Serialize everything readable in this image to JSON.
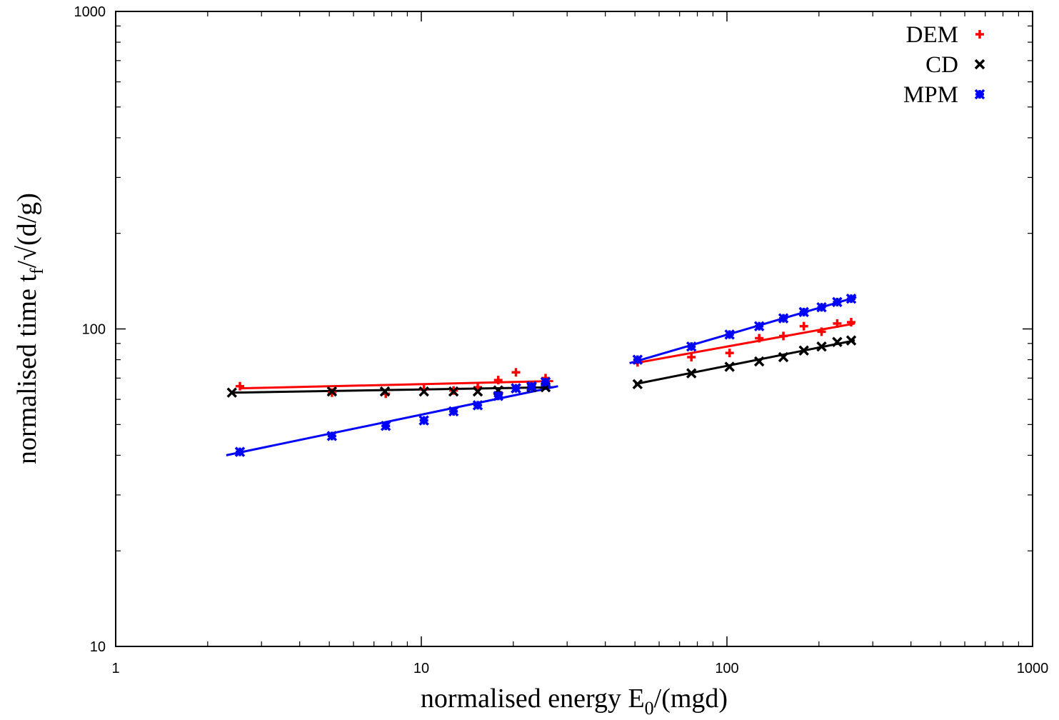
{
  "chart_data": {
    "type": "scatter",
    "xlabel_main": "normalised energy E",
    "xlabel_sub": "0",
    "xlabel_tail": "/(mgd)",
    "ylabel_main": "normalised time t",
    "ylabel_sub": "f",
    "ylabel_tail": "/√(d/g)",
    "x_scale": "log",
    "y_scale": "log",
    "xlim": [
      1,
      1000
    ],
    "ylim": [
      10,
      1000
    ],
    "x_ticks": [
      1,
      10,
      100,
      1000
    ],
    "x_tick_labels": [
      "1",
      "10",
      "100",
      "1000"
    ],
    "y_ticks": [
      10,
      100,
      1000
    ],
    "y_tick_labels": [
      "10",
      "100",
      "1000"
    ],
    "grid": false,
    "legend_position": "top-right",
    "series": [
      {
        "name": "DEM",
        "color": "#ff0000",
        "marker": "plus",
        "points": [
          [
            2.55,
            66.0
          ],
          [
            5.1,
            63.0
          ],
          [
            7.65,
            62.5
          ],
          [
            10.2,
            64.5
          ],
          [
            12.75,
            64.0
          ],
          [
            15.3,
            65.5
          ],
          [
            17.85,
            69.0
          ],
          [
            20.4,
            73.0
          ],
          [
            22.95,
            66.0
          ],
          [
            25.5,
            70.0
          ],
          [
            51,
            78.5
          ],
          [
            76.5,
            81.5
          ],
          [
            102,
            84.0
          ],
          [
            127.5,
            93.5
          ],
          [
            153,
            95.0
          ],
          [
            178.5,
            102.0
          ],
          [
            204,
            98.0
          ],
          [
            229.5,
            104.0
          ],
          [
            255,
            105.0
          ]
        ],
        "fits": [
          [
            [
              2.55,
              65.0
            ],
            [
              27,
              68.5
            ]
          ],
          [
            [
              50,
              78.0
            ],
            [
              262,
              104.0
            ]
          ]
        ]
      },
      {
        "name": "CD",
        "color": "#000000",
        "marker": "x",
        "points": [
          [
            2.4,
            63.0
          ],
          [
            5.1,
            63.5
          ],
          [
            7.6,
            63.5
          ],
          [
            10.2,
            63.5
          ],
          [
            12.75,
            63.5
          ],
          [
            15.3,
            63.5
          ],
          [
            17.85,
            64.0
          ],
          [
            20.4,
            65.0
          ],
          [
            22.95,
            65.5
          ],
          [
            25.5,
            65.5
          ],
          [
            51,
            67.0
          ],
          [
            76.5,
            72.5
          ],
          [
            102,
            76.0
          ],
          [
            127.5,
            79.0
          ],
          [
            153,
            81.5
          ],
          [
            178.5,
            85.5
          ],
          [
            204,
            88.0
          ],
          [
            229.5,
            91.0
          ],
          [
            255,
            92.0
          ]
        ],
        "fits": [
          [
            [
              2.4,
              63.0
            ],
            [
              27,
              65.5
            ]
          ],
          [
            [
              50,
              67.0
            ],
            [
              262,
              92.0
            ]
          ]
        ]
      },
      {
        "name": "MPM",
        "color": "#0000ff",
        "marker": "star",
        "points": [
          [
            2.55,
            41.0
          ],
          [
            5.1,
            46.0
          ],
          [
            7.65,
            49.5
          ],
          [
            10.2,
            51.5
          ],
          [
            12.75,
            55.0
          ],
          [
            15.3,
            57.5
          ],
          [
            17.85,
            61.5
          ],
          [
            20.4,
            65.0
          ],
          [
            22.95,
            66.0
          ],
          [
            25.5,
            68.0
          ],
          [
            51,
            80.0
          ],
          [
            76.5,
            88.0
          ],
          [
            102,
            96.0
          ],
          [
            127.5,
            102.0
          ],
          [
            153,
            108.0
          ],
          [
            178.5,
            113.0
          ],
          [
            204,
            117.0
          ],
          [
            229.5,
            121.5
          ],
          [
            255,
            124.5
          ]
        ],
        "fits": [
          [
            [
              2.3,
              40.0
            ],
            [
              28,
              66.0
            ]
          ],
          [
            [
              48,
              78.0
            ],
            [
              265,
              126.0
            ]
          ]
        ]
      }
    ]
  }
}
